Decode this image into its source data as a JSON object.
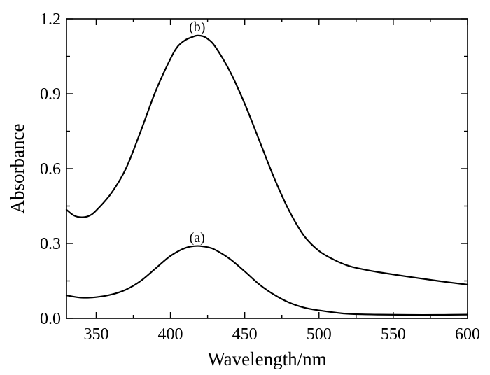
{
  "chart_data": {
    "type": "line",
    "xlabel": "Wavelength/nm",
    "ylabel": "Absorbance",
    "xlim": [
      330,
      600
    ],
    "ylim": [
      0.0,
      1.2
    ],
    "x_ticks": [
      350,
      400,
      450,
      500,
      550,
      600
    ],
    "x_tick_labels": [
      "350",
      "400",
      "450",
      "500",
      "550",
      "600"
    ],
    "y_ticks": [
      0.0,
      0.3,
      0.6,
      0.9,
      1.2
    ],
    "y_tick_labels": [
      "0.0",
      "0.3",
      "0.6",
      "0.9",
      "1.2"
    ],
    "grid": false,
    "series": [
      {
        "name": "(a)",
        "x": [
          330,
          340,
          350,
          360,
          370,
          380,
          390,
          400,
          410,
          418,
          425,
          430,
          440,
          450,
          460,
          470,
          480,
          490,
          500,
          510,
          520,
          540,
          560,
          580,
          600
        ],
        "y": [
          0.092,
          0.083,
          0.085,
          0.095,
          0.115,
          0.15,
          0.2,
          0.25,
          0.282,
          0.29,
          0.285,
          0.275,
          0.238,
          0.188,
          0.135,
          0.094,
          0.063,
          0.043,
          0.032,
          0.024,
          0.018,
          0.015,
          0.014,
          0.014,
          0.015
        ]
      },
      {
        "name": "(b)",
        "x": [
          330,
          335,
          340,
          345,
          350,
          360,
          370,
          380,
          390,
          400,
          405,
          410,
          415,
          418,
          422,
          425,
          430,
          440,
          450,
          460,
          470,
          480,
          490,
          500,
          510,
          520,
          530,
          540,
          560,
          580,
          600
        ],
        "y": [
          0.435,
          0.412,
          0.405,
          0.41,
          0.432,
          0.5,
          0.6,
          0.75,
          0.91,
          1.04,
          1.09,
          1.115,
          1.128,
          1.133,
          1.13,
          1.12,
          1.09,
          0.99,
          0.86,
          0.71,
          0.56,
          0.43,
          0.33,
          0.27,
          0.235,
          0.21,
          0.196,
          0.185,
          0.167,
          0.15,
          0.135
        ]
      }
    ],
    "annotations": [
      {
        "text": "(a)",
        "x": 418,
        "y": 0.305
      },
      {
        "text": "(b)",
        "x": 418,
        "y": 1.15
      }
    ]
  }
}
